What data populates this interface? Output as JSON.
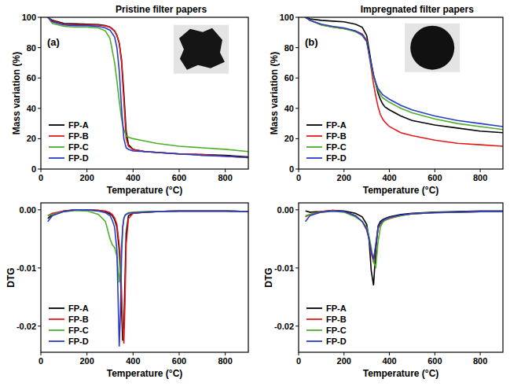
{
  "chart_data": [
    {
      "type": "line",
      "title": "Pristine filter papers",
      "annotations": [
        "(a)"
      ],
      "x_label": "Temperature (°C)",
      "y_label": "Mass variation (%)",
      "x": [
        30,
        50,
        100,
        150,
        200,
        250,
        280,
        300,
        320,
        330,
        340,
        350,
        360,
        370,
        380,
        400,
        450,
        500,
        600,
        700,
        800,
        900
      ],
      "series": [
        {
          "name": "FP-A",
          "color": "#000000",
          "values": [
            100,
            98,
            96,
            95.7,
            95.5,
            95.2,
            94.5,
            93.5,
            91,
            88,
            83,
            72,
            50,
            25,
            16,
            13,
            11.5,
            11,
            10,
            9.5,
            9,
            8
          ]
        },
        {
          "name": "FP-B",
          "color": "#e41a1c",
          "values": [
            100,
            97.5,
            95.5,
            95,
            95,
            94.8,
            94.3,
            93.5,
            91,
            88,
            83,
            70,
            45,
            20,
            15,
            13,
            11.5,
            11,
            10,
            9.5,
            8.5,
            7.5
          ]
        },
        {
          "name": "FP-C",
          "color": "#4daf2a",
          "values": [
            100,
            96,
            94,
            93.5,
            93.5,
            93,
            91,
            86,
            70,
            58,
            45,
            33,
            26,
            22,
            21,
            20,
            18.5,
            17,
            15,
            14,
            13,
            11.5
          ]
        },
        {
          "name": "FP-D",
          "color": "#2b3cc4",
          "values": [
            100,
            97,
            95,
            94.5,
            94.5,
            94,
            93,
            91.5,
            87,
            80,
            65,
            40,
            20,
            14,
            13,
            12,
            11.5,
            11,
            10,
            9,
            8.5,
            7.5
          ]
        }
      ],
      "xlim": [
        0,
        900
      ],
      "xticks": [
        0,
        200,
        400,
        600,
        800
      ],
      "ylim": [
        0,
        100
      ],
      "yticks": [
        0,
        20,
        40,
        60,
        80,
        100
      ],
      "grid": false,
      "legend": "lower left",
      "line_style": "solid"
    },
    {
      "type": "line",
      "title": "Impregnated filter papers",
      "annotations": [
        "(b)"
      ],
      "x_label": "Temperature (°C)",
      "y_label": "Mass variation (%)",
      "x": [
        30,
        50,
        100,
        150,
        200,
        250,
        280,
        300,
        320,
        330,
        340,
        350,
        360,
        370,
        380,
        400,
        450,
        500,
        600,
        700,
        800,
        900
      ],
      "series": [
        {
          "name": "FP-A",
          "color": "#000000",
          "values": [
            100,
            99,
            98,
            97.5,
            97,
            95.5,
            93.5,
            88,
            70,
            62,
            56,
            50,
            46,
            43,
            41,
            39,
            35,
            32,
            29,
            27,
            25,
            24
          ]
        },
        {
          "name": "FP-B",
          "color": "#e41a1c",
          "values": [
            100,
            98,
            95,
            93.5,
            92.5,
            91,
            89,
            85,
            66,
            56,
            48,
            41,
            36,
            33,
            31,
            28,
            24,
            22,
            19,
            17,
            16,
            15
          ]
        },
        {
          "name": "FP-C",
          "color": "#4daf2a",
          "values": [
            100,
            98,
            95,
            93.5,
            92.5,
            90.5,
            88,
            84,
            68,
            61,
            56,
            52,
            49,
            47,
            46,
            44,
            40,
            37,
            33,
            30,
            28,
            26
          ]
        },
        {
          "name": "FP-D",
          "color": "#2b3cc4",
          "values": [
            100,
            98,
            95.5,
            94,
            93,
            91,
            88.5,
            84,
            69,
            62,
            57,
            53,
            51,
            49,
            48,
            46,
            42,
            39,
            35,
            32,
            30,
            28
          ]
        }
      ],
      "xlim": [
        0,
        900
      ],
      "xticks": [
        0,
        200,
        400,
        600,
        800
      ],
      "ylim": [
        0,
        100
      ],
      "yticks": [
        0,
        20,
        40,
        60,
        80,
        100
      ],
      "grid": false,
      "legend": "lower left",
      "line_style": "solid"
    },
    {
      "type": "line",
      "x_label": "Temperature (°C)",
      "y_label": "DTG",
      "x": [
        30,
        50,
        100,
        150,
        200,
        250,
        280,
        300,
        310,
        320,
        330,
        340,
        345,
        350,
        355,
        360,
        365,
        370,
        380,
        400,
        450,
        500,
        600,
        700,
        800,
        900
      ],
      "series": [
        {
          "name": "FP-A",
          "color": "#000000",
          "values": [
            -0.0015,
            -0.0008,
            -0.0002,
            0,
            0,
            -0.0001,
            -0.0003,
            -0.0007,
            -0.001,
            -0.0017,
            -0.003,
            -0.007,
            -0.011,
            -0.017,
            -0.0225,
            -0.02,
            -0.012,
            -0.004,
            -0.001,
            -0.0006,
            -0.0004,
            -0.0003,
            -0.0002,
            -0.0002,
            -0.0002,
            -0.0003
          ]
        },
        {
          "name": "FP-B",
          "color": "#e41a1c",
          "values": [
            -0.001,
            -0.0006,
            -0.0002,
            0,
            0,
            -0.0001,
            -0.0002,
            -0.0005,
            -0.0008,
            -0.0014,
            -0.0025,
            -0.006,
            -0.009,
            -0.014,
            -0.02,
            -0.023,
            -0.016,
            -0.006,
            -0.0015,
            -0.0006,
            -0.0004,
            -0.0003,
            -0.0002,
            -0.0002,
            -0.0002,
            -0.0003
          ]
        },
        {
          "name": "FP-C",
          "color": "#4daf2a",
          "values": [
            -0.001,
            -0.0008,
            -0.0003,
            -0.0001,
            -0.0002,
            -0.0008,
            -0.002,
            -0.005,
            -0.006,
            -0.0065,
            -0.008,
            -0.0125,
            -0.01,
            -0.006,
            -0.003,
            -0.0015,
            -0.0009,
            -0.0007,
            -0.0005,
            -0.0004,
            -0.0003,
            -0.0003,
            -0.0002,
            -0.0002,
            -0.0002,
            -0.0003
          ]
        },
        {
          "name": "FP-D",
          "color": "#2b3cc4",
          "values": [
            -0.002,
            -0.001,
            -0.0003,
            0,
            0,
            -0.0002,
            -0.0005,
            -0.001,
            -0.0018,
            -0.003,
            -0.007,
            -0.0235,
            -0.018,
            -0.008,
            -0.003,
            -0.0015,
            -0.001,
            -0.0008,
            -0.0006,
            -0.0005,
            -0.0004,
            -0.0003,
            -0.0002,
            -0.0002,
            -0.0002,
            -0.0003
          ]
        }
      ],
      "xlim": [
        0,
        900
      ],
      "xticks": [
        0,
        200,
        400,
        600,
        800
      ],
      "ylim": [
        -0.0245,
        0.0012
      ],
      "yticks": [
        -0.02,
        -0.01,
        {
          "value": 0,
          "label": "0.00"
        }
      ],
      "grid": false,
      "legend": "lower left",
      "line_style": "solid"
    },
    {
      "type": "line",
      "x_label": "Temperature (°C)",
      "y_label": "DTG",
      "x": [
        30,
        50,
        100,
        150,
        200,
        250,
        280,
        300,
        310,
        320,
        330,
        340,
        350,
        360,
        370,
        380,
        400,
        450,
        500,
        600,
        700,
        800,
        900
      ],
      "series": [
        {
          "name": "FP-A",
          "color": "#000000",
          "values": [
            -0.0002,
            -0.0004,
            -0.0003,
            -0.0001,
            -0.0002,
            -0.0006,
            -0.0012,
            -0.0025,
            -0.005,
            -0.0105,
            -0.013,
            -0.007,
            -0.0028,
            -0.002,
            -0.0017,
            -0.0015,
            -0.0012,
            -0.0008,
            -0.0006,
            -0.0004,
            -0.0003,
            -0.0002,
            -0.0002
          ]
        },
        {
          "name": "FP-B",
          "color": "#e41a1c",
          "values": [
            -0.0012,
            -0.0008,
            -0.0003,
            -0.0001,
            -0.0003,
            -0.001,
            -0.002,
            -0.0035,
            -0.005,
            -0.0075,
            -0.009,
            -0.006,
            -0.0032,
            -0.0025,
            -0.002,
            -0.0018,
            -0.0015,
            -0.001,
            -0.0007,
            -0.0005,
            -0.0004,
            -0.0003,
            -0.0003
          ]
        },
        {
          "name": "FP-C",
          "color": "#4daf2a",
          "values": [
            -0.001,
            -0.0008,
            -0.0004,
            -0.0002,
            -0.0004,
            -0.0012,
            -0.002,
            -0.003,
            -0.0045,
            -0.0065,
            -0.009,
            -0.0098,
            -0.0055,
            -0.003,
            -0.0022,
            -0.0018,
            -0.0014,
            -0.001,
            -0.0007,
            -0.0005,
            -0.0004,
            -0.0003,
            -0.0003
          ]
        },
        {
          "name": "FP-D",
          "color": "#2b3cc4",
          "values": [
            -0.002,
            -0.001,
            -0.0004,
            -0.0002,
            -0.0003,
            -0.001,
            -0.002,
            -0.0033,
            -0.005,
            -0.0072,
            -0.0085,
            -0.006,
            -0.003,
            -0.0023,
            -0.0019,
            -0.0016,
            -0.0013,
            -0.0009,
            -0.0007,
            -0.0005,
            -0.0004,
            -0.0003,
            -0.0003
          ]
        }
      ],
      "xlim": [
        0,
        900
      ],
      "xticks": [
        0,
        200,
        400,
        600,
        800
      ],
      "ylim": [
        -0.0245,
        0.0012
      ],
      "yticks": [
        -0.02,
        -0.01,
        {
          "value": 0,
          "label": "0.00"
        }
      ],
      "grid": false,
      "legend": "lower left",
      "line_style": "solid"
    }
  ]
}
